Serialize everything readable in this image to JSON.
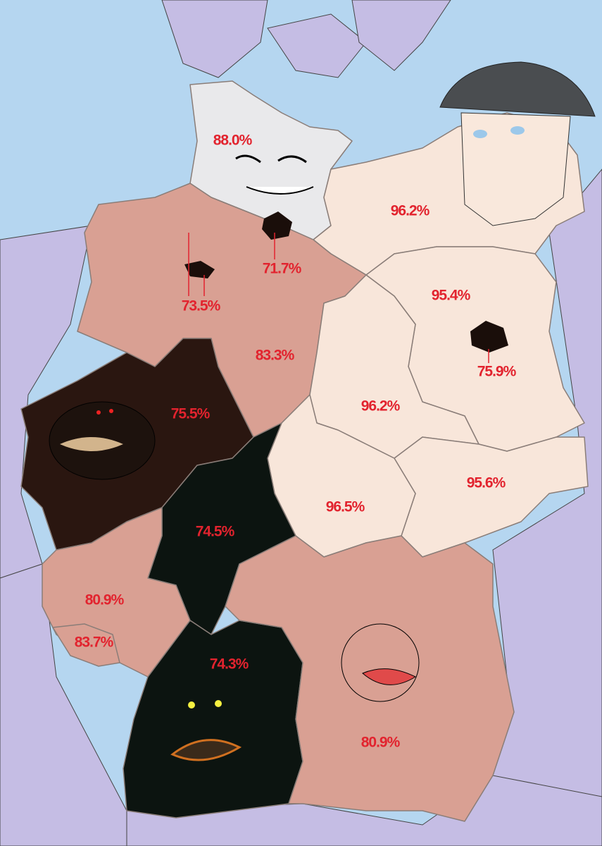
{
  "regions": [
    {
      "label": "88.0%"
    },
    {
      "label": "96.2%"
    },
    {
      "label": "71.7%"
    },
    {
      "label": "73.5%"
    },
    {
      "label": "95.4%"
    },
    {
      "label": "83.3%"
    },
    {
      "label": "75.9%"
    },
    {
      "label": "96.2%"
    },
    {
      "label": "75.5%"
    },
    {
      "label": "95.6%"
    },
    {
      "label": "96.5%"
    },
    {
      "label": "74.5%"
    },
    {
      "label": "80.9%"
    },
    {
      "label": "83.7%"
    },
    {
      "label": "74.3%"
    },
    {
      "label": "80.9%"
    }
  ]
}
